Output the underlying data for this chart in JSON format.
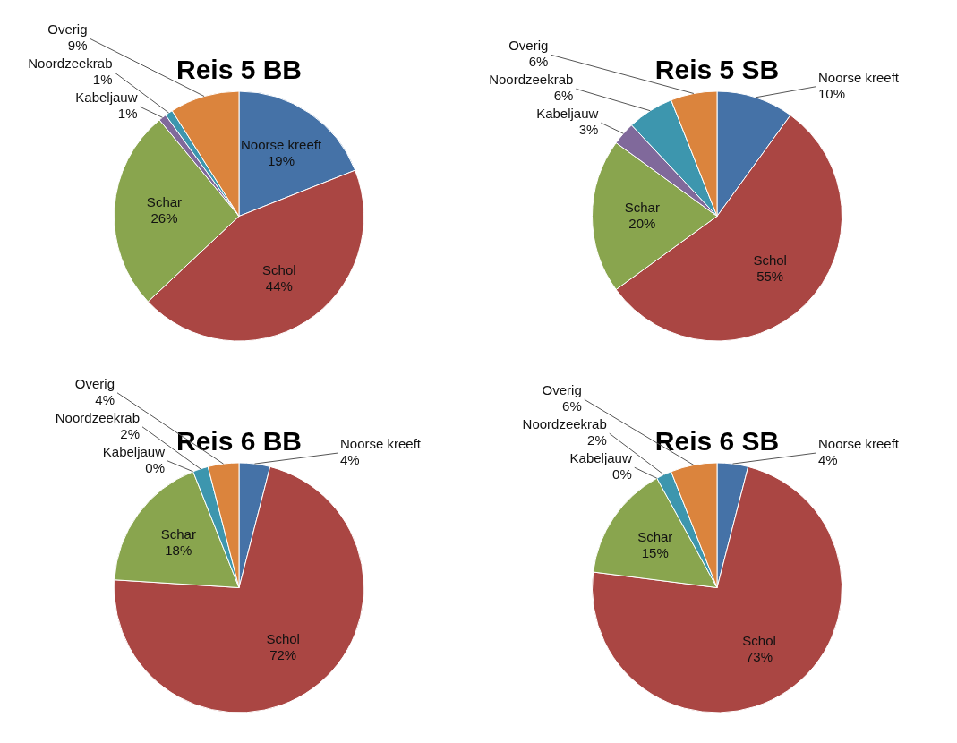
{
  "chart_data": [
    {
      "type": "pie",
      "title": "Reis 5 BB",
      "categories": [
        "Noorse kreeft",
        "Schol",
        "Schar",
        "Kabeljauw",
        "Noordzeekrab",
        "Overig"
      ],
      "values": [
        19,
        44,
        26,
        1,
        1,
        9
      ],
      "value_labels": [
        "19%",
        "44%",
        "26%",
        "1%",
        "1%",
        "9%"
      ],
      "colors": [
        "#4572a7",
        "#aa4643",
        "#89a54e",
        "#80699b",
        "#3d96ae",
        "#db843d"
      ],
      "legend": false
    },
    {
      "type": "pie",
      "title": "Reis 5 SB",
      "categories": [
        "Noorse kreeft",
        "Schol",
        "Schar",
        "Kabeljauw",
        "Noordzeekrab",
        "Overig"
      ],
      "values": [
        10,
        55,
        20,
        3,
        6,
        6
      ],
      "value_labels": [
        "10%",
        "55%",
        "20%",
        "3%",
        "6%",
        "6%"
      ],
      "colors": [
        "#4572a7",
        "#aa4643",
        "#89a54e",
        "#80699b",
        "#3d96ae",
        "#db843d"
      ],
      "legend": false
    },
    {
      "type": "pie",
      "title": "Reis 6 BB",
      "categories": [
        "Noorse kreeft",
        "Schol",
        "Schar",
        "Kabeljauw",
        "Noordzeekrab",
        "Overig"
      ],
      "values": [
        4,
        72,
        18,
        0,
        2,
        4
      ],
      "value_labels": [
        "4%",
        "72%",
        "18%",
        "0%",
        "2%",
        "4%"
      ],
      "colors": [
        "#4572a7",
        "#aa4643",
        "#89a54e",
        "#80699b",
        "#3d96ae",
        "#db843d"
      ],
      "legend": false
    },
    {
      "type": "pie",
      "title": "Reis 6 SB",
      "categories": [
        "Noorse kreeft",
        "Schol",
        "Schar",
        "Kabeljauw",
        "Noordzeekrab",
        "Overig"
      ],
      "values": [
        4,
        73,
        15,
        0,
        2,
        6
      ],
      "value_labels": [
        "4%",
        "73%",
        "15%",
        "0%",
        "2%",
        "6%"
      ],
      "colors": [
        "#4572a7",
        "#aa4643",
        "#89a54e",
        "#80699b",
        "#3d96ae",
        "#db843d"
      ],
      "legend": false
    }
  ]
}
